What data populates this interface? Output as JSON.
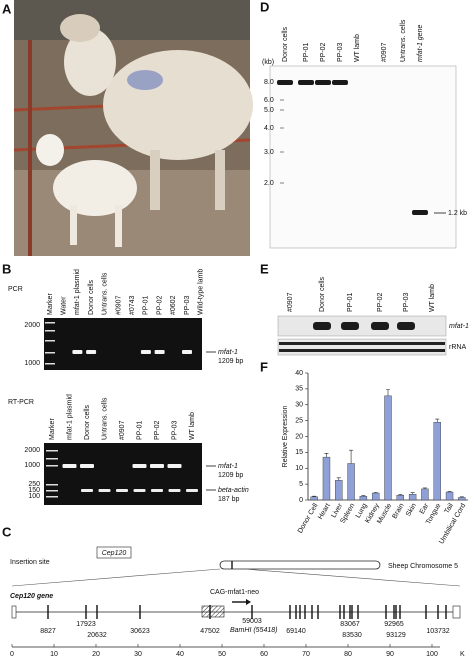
{
  "panel_a": {
    "label": "A"
  },
  "panel_b": {
    "label": "B",
    "pcr": {
      "title": "PCR",
      "lanes": [
        "Marker",
        "Water",
        "mfat-1 plasmid",
        "Donor cells",
        "Untrans. cells",
        "#0907",
        "#0743",
        "PP-01",
        "PP-02",
        "#0602",
        "PP-03",
        "Wild-type lamb"
      ],
      "bp_labels": [
        "2000",
        "1000"
      ],
      "band_label": "mfat-1",
      "band_size": "1209 bp"
    },
    "rt_pcr": {
      "title": "RT-PCR",
      "lanes": [
        "Marker",
        "mfat-1 plasmid",
        "Donor cells",
        "Untrans. cells",
        "#0907",
        "PP-01",
        "PP-02",
        "PP-03",
        "WT lamb"
      ],
      "bp_labels": [
        "2000",
        "1000",
        "250",
        "150",
        "100"
      ],
      "bands": [
        {
          "name": "mfat-1",
          "size": "1209 bp"
        },
        {
          "name": "beta-actin",
          "size": "187 bp"
        }
      ]
    }
  },
  "panel_d": {
    "label": "D",
    "unit": "(kb)",
    "lanes": [
      "Donor cells",
      "PP-01",
      "PP-02",
      "PP-03",
      "WT lamb",
      "#0907",
      "Untrans. cells",
      "mfat-1 gene"
    ],
    "sizes": [
      "8.0",
      "6.0",
      "5.0",
      "4.0",
      "3.0",
      "2.0"
    ],
    "band_label": "1.2 kb"
  },
  "panel_e": {
    "label": "E",
    "lanes": [
      "#0907",
      "Donor cells",
      "PP-01",
      "PP-02",
      "PP-03",
      "WT lamb"
    ],
    "rows": [
      "mfat-1",
      "rRNA"
    ]
  },
  "chart_data": {
    "type": "bar",
    "panel_label": "F",
    "y_label": "Relative Expression",
    "categories": [
      "Donor Cell",
      "Heart",
      "Liver",
      "Spleen",
      "Lung",
      "Kidney",
      "Muscle",
      "Brain",
      "Skin",
      "Ear",
      "Tongue",
      "Tail",
      "Umbilical Cord"
    ],
    "values": [
      1.0,
      13.5,
      6.2,
      11.5,
      1.2,
      2.2,
      32.8,
      1.5,
      1.8,
      3.5,
      24.5,
      2.5,
      0.8
    ],
    "errors": [
      0.2,
      1.2,
      0.8,
      4.2,
      0.2,
      0.2,
      2.0,
      0.2,
      0.5,
      0.3,
      1.0,
      0.2,
      0.2
    ],
    "color": "#8f9fd8",
    "ylim": [
      0,
      40
    ],
    "yticks": [
      0,
      5,
      10,
      15,
      20,
      25,
      30,
      35,
      40
    ]
  },
  "panel_c": {
    "label": "C",
    "insertion_site": "Insertion site",
    "gene_box": "Cep120",
    "chromosome": "Sheep Chromosome 5",
    "gene": "Cep120 gene",
    "construct": "CAG-mfat1-neo",
    "bamhi": "BamHI (55418)",
    "positions": [
      "8827",
      "17923",
      "20632",
      "30623",
      "47502",
      "59003",
      "69140",
      "83067",
      "83530",
      "92965",
      "93129",
      "103732"
    ],
    "axis_ticks": [
      0,
      10,
      20,
      30,
      40,
      50,
      60,
      70,
      80,
      90,
      100
    ],
    "axis_unit": "K"
  }
}
